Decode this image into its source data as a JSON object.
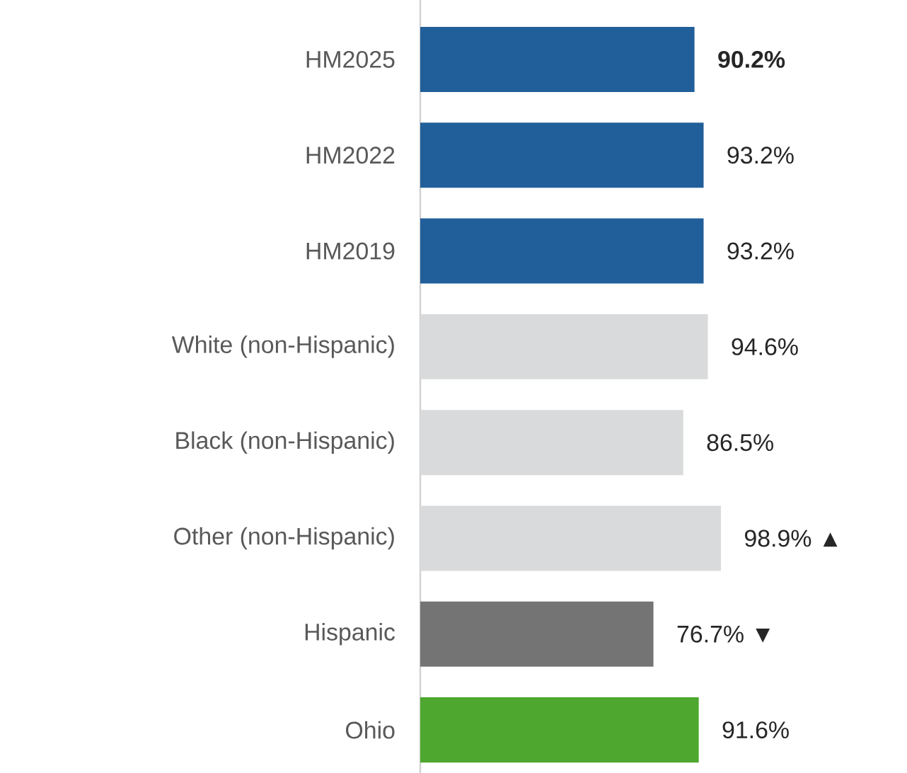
{
  "chart_data": {
    "type": "bar",
    "orientation": "horizontal",
    "categories": [
      "HM2025",
      "HM2022",
      "HM2019",
      "White (non-Hispanic)",
      "Black (non-Hispanic)",
      "Other (non-Hispanic)",
      "Hispanic",
      "Ohio"
    ],
    "values": [
      90.2,
      93.2,
      93.2,
      94.6,
      86.5,
      98.9,
      76.7,
      91.6
    ],
    "value_labels": [
      "**90.2%**",
      "93.2%",
      "93.2%",
      "94.6%",
      "86.5%",
      "98.9% ▲",
      "76.7% ▼",
      "91.6%"
    ],
    "colors": [
      "#215f9a",
      "#215f9a",
      "#215f9a",
      "#d9dadb",
      "#d9dadb",
      "#d9dadb",
      "#747474",
      "#4ea72e"
    ]
  }
}
